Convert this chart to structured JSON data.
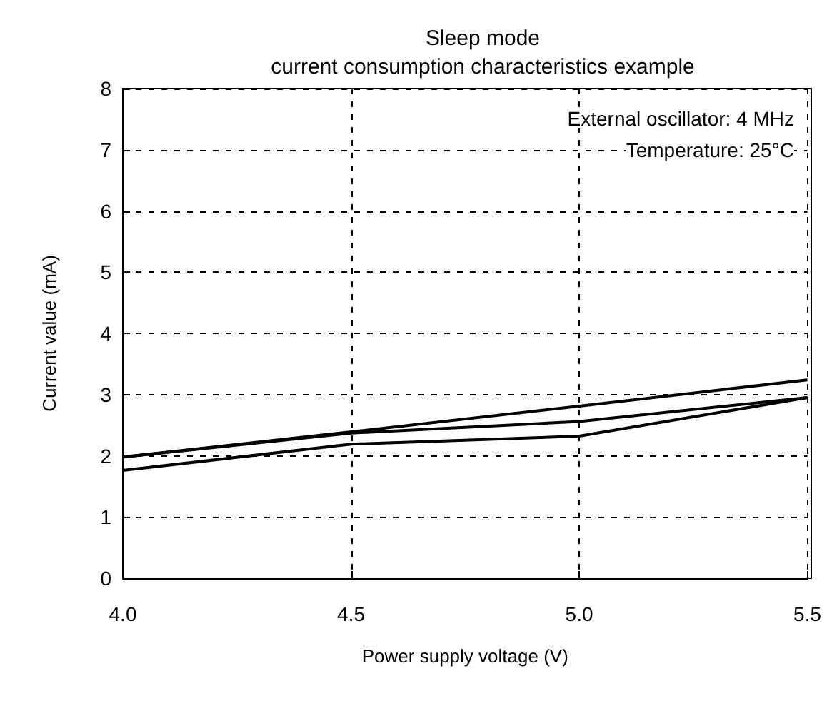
{
  "chart_data": {
    "type": "line",
    "title": "Sleep mode\ncurrent consumption characteristics example",
    "xlabel": "Power supply voltage (V)",
    "ylabel": "Current value (mA)",
    "x": [
      4.0,
      4.5,
      5.0,
      5.5
    ],
    "series": [
      {
        "color": "#000000",
        "values": [
          1.98,
          2.39,
          2.81,
          3.24
        ]
      },
      {
        "color": "#000000",
        "values": [
          1.98,
          2.37,
          2.56,
          2.95
        ]
      },
      {
        "color": "#000000",
        "values": [
          1.76,
          2.19,
          2.32,
          2.95
        ]
      }
    ],
    "xlim": [
      4.0,
      5.5
    ],
    "xticks": [
      {
        "value": 4.0,
        "label": "4.0"
      },
      {
        "value": 4.5,
        "label": "4.5"
      },
      {
        "value": 5.0,
        "label": "5.0"
      },
      {
        "value": 5.5,
        "label": "5.5"
      }
    ],
    "ylim": [
      0,
      8
    ],
    "yticks": [
      0,
      1,
      2,
      3,
      4,
      5,
      6,
      7,
      8
    ],
    "annotations": [
      "External oscillator: 4 MHz",
      "Temperature: 25°C"
    ],
    "grid": true,
    "marker": "none",
    "line_style": "solid"
  }
}
